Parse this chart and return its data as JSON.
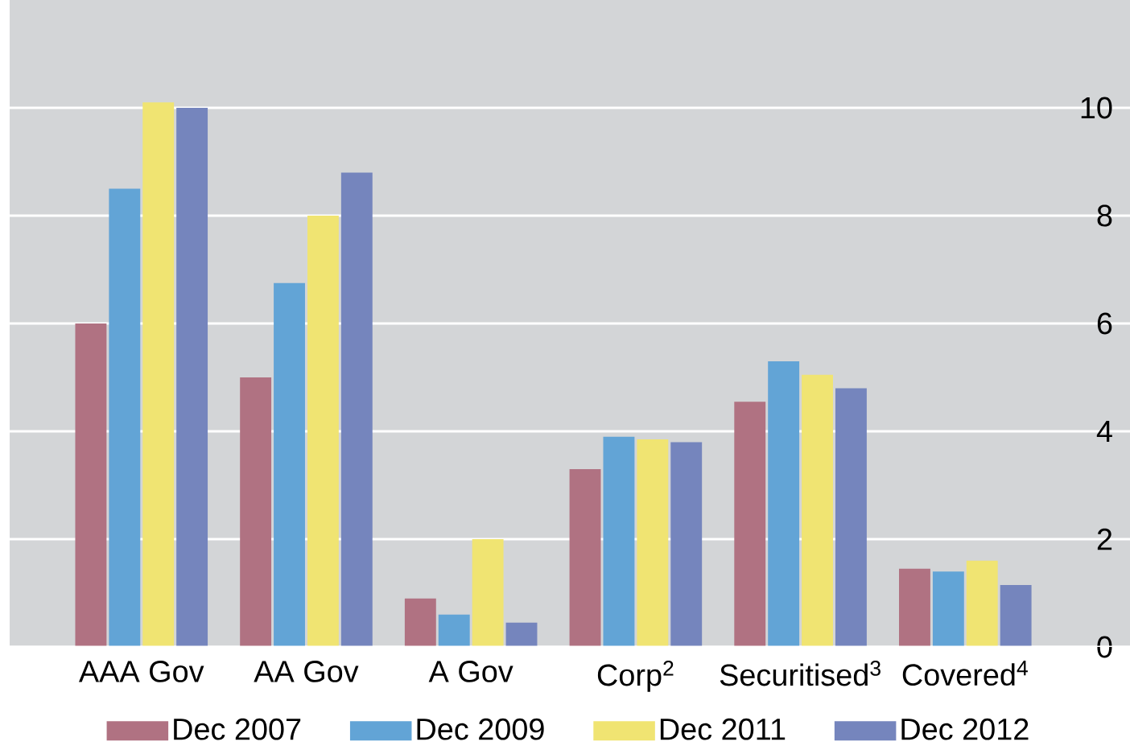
{
  "chart_data": {
    "type": "bar",
    "categories": [
      "AAA Gov",
      "AA Gov",
      "A Gov",
      "Corp$^{2}$",
      "Securitised$^{3}$",
      "Covered$^{4}$"
    ],
    "series": [
      {
        "name": "Dec 2007",
        "color": "#b07282",
        "values": [
          6.0,
          5.0,
          0.9,
          3.3,
          4.55,
          1.45
        ]
      },
      {
        "name": "Dec 2009",
        "color": "#62a4d6",
        "values": [
          8.5,
          6.75,
          0.6,
          3.9,
          5.3,
          1.4
        ]
      },
      {
        "name": "Dec 2011",
        "color": "#f0e472",
        "values": [
          10.1,
          8.0,
          2.0,
          3.85,
          5.05,
          1.6
        ]
      },
      {
        "name": "Dec 2012",
        "color": "#7585bd",
        "values": [
          10.0,
          8.8,
          0.45,
          3.8,
          4.8,
          1.15
        ]
      }
    ],
    "ylim": [
      0,
      12
    ],
    "yticks": [
      0,
      2,
      4,
      6,
      8,
      10
    ],
    "grid": "y",
    "legend": "bottom"
  }
}
